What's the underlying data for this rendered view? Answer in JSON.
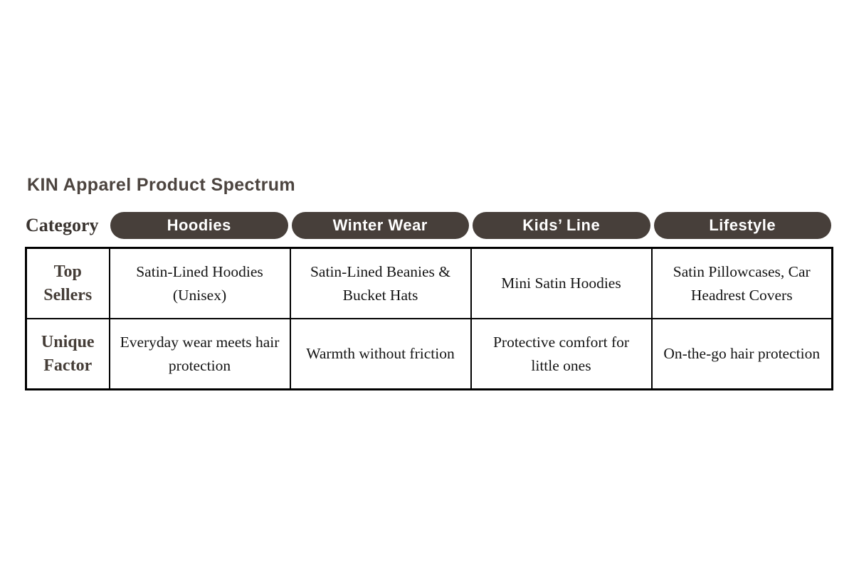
{
  "title": "KIN Apparel Product Spectrum",
  "category_label": "Category",
  "colors": {
    "pill_background": "#473f3a",
    "pill_text": "#ffffff",
    "title_text": "#4c443f",
    "row_header_text": "#453d37",
    "body_text": "#141414",
    "table_border": "#000000",
    "page_background": "#ffffff"
  },
  "chart_data": {
    "type": "table",
    "title": "KIN Apparel Product Spectrum",
    "columns": [
      "Category",
      "Hoodies",
      "Winter Wear",
      "Kids’ Line",
      "Lifestyle"
    ],
    "rows": [
      {
        "header": "Top Sellers",
        "cells": [
          "Satin-Lined Hoodies (Unisex)",
          "Satin-Lined Beanies & Bucket Hats",
          "Mini Satin Hoodies",
          "Satin Pillowcases, Car Headrest Covers"
        ]
      },
      {
        "header": "Unique Factor",
        "cells": [
          "Everyday wear meets hair protection",
          "Warmth without friction",
          "Protective comfort for little ones",
          "On-the-go hair protection"
        ]
      }
    ],
    "layout": {
      "grid": "off",
      "header_style": "dark rounded pills",
      "border": "solid black"
    }
  }
}
